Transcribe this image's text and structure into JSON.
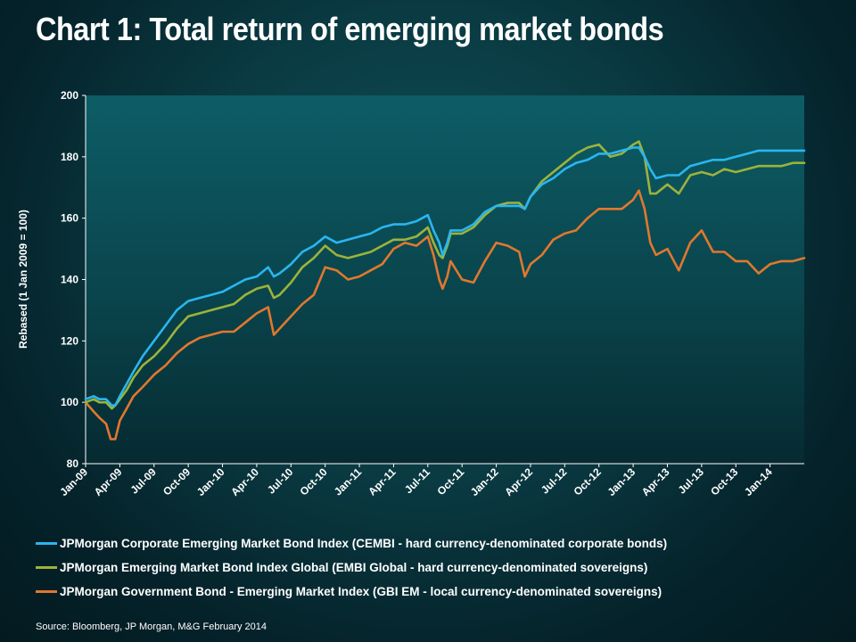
{
  "slide": {
    "title": "Chart 1: Total return of emerging market bonds",
    "source": "Source: Bloomberg, JP Morgan, M&G February 2014"
  },
  "chart_data": {
    "type": "line",
    "title": "",
    "xlabel": "",
    "ylabel": "Rebased (1 Jan 2009 = 100)",
    "ylim": [
      80,
      200
    ],
    "y_ticks": [
      80,
      100,
      120,
      140,
      160,
      180,
      200
    ],
    "x_ticks": [
      "Jan-09",
      "Apr-09",
      "Jul-09",
      "Oct-09",
      "Jan-10",
      "Apr-10",
      "Jul-10",
      "Oct-10",
      "Jan-11",
      "Apr-11",
      "Jul-11",
      "Oct-11",
      "Jan-12",
      "Apr-12",
      "Jul-12",
      "Oct-12",
      "Jan-13",
      "Apr-13",
      "Jul-13",
      "Oct-13",
      "Jan-14"
    ],
    "x_unit": "months since Jan-09",
    "xlim": [
      0,
      63
    ],
    "grid": false,
    "legend_position": "bottom",
    "plot_background": "#0d5a62",
    "series": [
      {
        "name": "JPMorgan Corporate Emerging Market Bond Index  (CEMBI - hard currency-denominated corporate bonds)",
        "color": "#29b6f0",
        "points": [
          [
            0,
            101
          ],
          [
            0.7,
            102
          ],
          [
            1.2,
            101
          ],
          [
            1.8,
            101
          ],
          [
            2.3,
            99
          ],
          [
            2.6,
            99
          ],
          [
            3,
            102
          ],
          [
            3.6,
            106
          ],
          [
            4.2,
            110
          ],
          [
            5,
            115
          ],
          [
            6,
            120
          ],
          [
            7,
            125
          ],
          [
            8,
            130
          ],
          [
            9,
            133
          ],
          [
            10,
            134
          ],
          [
            11,
            135
          ],
          [
            12,
            136
          ],
          [
            13,
            138
          ],
          [
            14,
            140
          ],
          [
            15,
            141
          ],
          [
            16,
            144
          ],
          [
            16.5,
            141
          ],
          [
            17,
            142
          ],
          [
            18,
            145
          ],
          [
            19,
            149
          ],
          [
            20,
            151
          ],
          [
            21,
            154
          ],
          [
            22,
            152
          ],
          [
            23,
            153
          ],
          [
            24,
            154
          ],
          [
            25,
            155
          ],
          [
            26,
            157
          ],
          [
            27,
            158
          ],
          [
            28,
            158
          ],
          [
            29,
            159
          ],
          [
            30,
            161
          ],
          [
            30.5,
            156
          ],
          [
            31,
            152
          ],
          [
            31.3,
            148
          ],
          [
            31.7,
            152
          ],
          [
            32,
            156
          ],
          [
            33,
            156
          ],
          [
            34,
            158
          ],
          [
            35,
            162
          ],
          [
            36,
            164
          ],
          [
            37,
            164
          ],
          [
            38,
            164
          ],
          [
            38.5,
            163
          ],
          [
            39,
            167
          ],
          [
            40,
            171
          ],
          [
            41,
            173
          ],
          [
            42,
            176
          ],
          [
            43,
            178
          ],
          [
            44,
            179
          ],
          [
            45,
            181
          ],
          [
            46,
            181
          ],
          [
            47,
            182
          ],
          [
            48,
            183
          ],
          [
            48.5,
            183
          ],
          [
            49,
            180
          ],
          [
            49.5,
            176
          ],
          [
            50,
            173
          ],
          [
            51,
            174
          ],
          [
            52,
            174
          ],
          [
            53,
            177
          ],
          [
            54,
            178
          ],
          [
            55,
            179
          ],
          [
            56,
            179
          ],
          [
            57,
            180
          ],
          [
            58,
            181
          ],
          [
            59,
            182
          ],
          [
            60,
            182
          ],
          [
            61,
            182
          ],
          [
            62,
            182
          ],
          [
            63,
            182
          ]
        ]
      },
      {
        "name": "JPMorgan Emerging Market Bond Index Global (EMBI Global - hard currency-denominated sovereigns)",
        "color": "#9cb33a",
        "points": [
          [
            0,
            100
          ],
          [
            0.7,
            101
          ],
          [
            1.2,
            100
          ],
          [
            1.8,
            100
          ],
          [
            2.3,
            98
          ],
          [
            2.6,
            99
          ],
          [
            3,
            101
          ],
          [
            3.6,
            104
          ],
          [
            4.2,
            108
          ],
          [
            5,
            112
          ],
          [
            6,
            115
          ],
          [
            7,
            119
          ],
          [
            8,
            124
          ],
          [
            9,
            128
          ],
          [
            10,
            129
          ],
          [
            11,
            130
          ],
          [
            12,
            131
          ],
          [
            13,
            132
          ],
          [
            14,
            135
          ],
          [
            15,
            137
          ],
          [
            16,
            138
          ],
          [
            16.5,
            134
          ],
          [
            17,
            135
          ],
          [
            18,
            139
          ],
          [
            19,
            144
          ],
          [
            20,
            147
          ],
          [
            21,
            151
          ],
          [
            22,
            148
          ],
          [
            23,
            147
          ],
          [
            24,
            148
          ],
          [
            25,
            149
          ],
          [
            26,
            151
          ],
          [
            27,
            153
          ],
          [
            28,
            153
          ],
          [
            29,
            154
          ],
          [
            30,
            157
          ],
          [
            30.5,
            152
          ],
          [
            31,
            148
          ],
          [
            31.3,
            147
          ],
          [
            31.7,
            151
          ],
          [
            32,
            155
          ],
          [
            33,
            155
          ],
          [
            34,
            157
          ],
          [
            35,
            161
          ],
          [
            36,
            164
          ],
          [
            37,
            165
          ],
          [
            38,
            165
          ],
          [
            38.5,
            163
          ],
          [
            39,
            167
          ],
          [
            40,
            172
          ],
          [
            41,
            175
          ],
          [
            42,
            178
          ],
          [
            43,
            181
          ],
          [
            44,
            183
          ],
          [
            45,
            184
          ],
          [
            46,
            180
          ],
          [
            47,
            181
          ],
          [
            48,
            184
          ],
          [
            48.5,
            185
          ],
          [
            49,
            180
          ],
          [
            49.5,
            168
          ],
          [
            50,
            168
          ],
          [
            51,
            171
          ],
          [
            52,
            168
          ],
          [
            53,
            174
          ],
          [
            54,
            175
          ],
          [
            55,
            174
          ],
          [
            56,
            176
          ],
          [
            57,
            175
          ],
          [
            58,
            176
          ],
          [
            59,
            177
          ],
          [
            60,
            177
          ],
          [
            61,
            177
          ],
          [
            62,
            178
          ],
          [
            63,
            178
          ]
        ]
      },
      {
        "name": "JPMorgan Government Bond - Emerging Market Index (GBI EM - local currency-denominated sovereigns)",
        "color": "#e0782e",
        "points": [
          [
            0,
            100
          ],
          [
            0.7,
            97
          ],
          [
            1.2,
            95
          ],
          [
            1.8,
            93
          ],
          [
            2.2,
            88
          ],
          [
            2.6,
            88
          ],
          [
            3,
            94
          ],
          [
            3.6,
            98
          ],
          [
            4.2,
            102
          ],
          [
            5,
            105
          ],
          [
            6,
            109
          ],
          [
            7,
            112
          ],
          [
            8,
            116
          ],
          [
            9,
            119
          ],
          [
            10,
            121
          ],
          [
            11,
            122
          ],
          [
            12,
            123
          ],
          [
            13,
            123
          ],
          [
            14,
            126
          ],
          [
            15,
            129
          ],
          [
            16,
            131
          ],
          [
            16.5,
            122
          ],
          [
            17,
            124
          ],
          [
            18,
            128
          ],
          [
            19,
            132
          ],
          [
            20,
            135
          ],
          [
            21,
            144
          ],
          [
            22,
            143
          ],
          [
            23,
            140
          ],
          [
            24,
            141
          ],
          [
            25,
            143
          ],
          [
            26,
            145
          ],
          [
            27,
            150
          ],
          [
            28,
            152
          ],
          [
            29,
            151
          ],
          [
            30,
            154
          ],
          [
            30.5,
            148
          ],
          [
            31,
            140
          ],
          [
            31.3,
            137
          ],
          [
            31.7,
            141
          ],
          [
            32,
            146
          ],
          [
            33,
            140
          ],
          [
            34,
            139
          ],
          [
            35,
            146
          ],
          [
            36,
            152
          ],
          [
            37,
            151
          ],
          [
            38,
            149
          ],
          [
            38.5,
            141
          ],
          [
            39,
            145
          ],
          [
            40,
            148
          ],
          [
            41,
            153
          ],
          [
            42,
            155
          ],
          [
            43,
            156
          ],
          [
            44,
            160
          ],
          [
            45,
            163
          ],
          [
            46,
            163
          ],
          [
            47,
            163
          ],
          [
            48,
            166
          ],
          [
            48.5,
            169
          ],
          [
            49,
            163
          ],
          [
            49.5,
            152
          ],
          [
            50,
            148
          ],
          [
            51,
            150
          ],
          [
            52,
            143
          ],
          [
            53,
            152
          ],
          [
            54,
            156
          ],
          [
            55,
            149
          ],
          [
            56,
            149
          ],
          [
            57,
            146
          ],
          [
            58,
            146
          ],
          [
            59,
            142
          ],
          [
            60,
            145
          ],
          [
            61,
            146
          ],
          [
            62,
            146
          ],
          [
            63,
            147
          ]
        ]
      }
    ]
  }
}
